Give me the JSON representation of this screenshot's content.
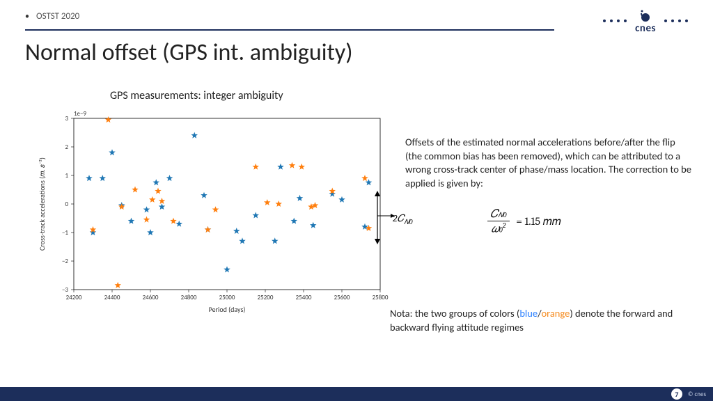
{
  "header": {
    "breadcrumb": "OSTST 2020",
    "logo_text": "cnes"
  },
  "title": "Normal offset (GPS int. ambiguity)",
  "chart": {
    "type": "scatter",
    "title": "GPS measurements: integer ambiguity",
    "xlabel": "Period (days)",
    "ylabel": "Cross-track accelerations  (𝑚. 𝑠⁻²)",
    "y_exponent_label": "1e−9",
    "xlim": [
      24200,
      25800
    ],
    "ylim": [
      -3,
      3
    ],
    "xticks": [
      24200,
      24400,
      24600,
      24800,
      25000,
      25200,
      25400,
      25600,
      25800
    ],
    "yticks": [
      -3,
      -2,
      -1,
      0,
      1,
      2,
      3
    ],
    "tick_fontsize": 9,
    "label_fontsize": 10,
    "background_color": "#ffffff",
    "frame_color": "#000000",
    "marker": "star",
    "marker_size": 5,
    "series": [
      {
        "name": "forward",
        "color": "#1f77b4",
        "points": [
          [
            24280,
            0.9
          ],
          [
            24300,
            -1.0
          ],
          [
            24350,
            0.9
          ],
          [
            24400,
            1.8
          ],
          [
            24450,
            -0.05
          ],
          [
            24500,
            -0.6
          ],
          [
            24580,
            -0.2
          ],
          [
            24600,
            -1.0
          ],
          [
            24630,
            0.75
          ],
          [
            24660,
            -0.1
          ],
          [
            24700,
            0.9
          ],
          [
            24750,
            -0.7
          ],
          [
            24830,
            2.4
          ],
          [
            24880,
            0.3
          ],
          [
            24900,
            -0.9
          ],
          [
            25000,
            -2.3
          ],
          [
            25050,
            -0.95
          ],
          [
            25080,
            -1.3
          ],
          [
            25150,
            -0.4
          ],
          [
            25250,
            -1.3
          ],
          [
            25280,
            1.3
          ],
          [
            25350,
            -0.6
          ],
          [
            25380,
            0.2
          ],
          [
            25450,
            -0.75
          ],
          [
            25550,
            0.35
          ],
          [
            25600,
            0.15
          ],
          [
            25720,
            -0.8
          ],
          [
            25740,
            0.75
          ]
        ]
      },
      {
        "name": "backward",
        "color": "#ff7f0e",
        "points": [
          [
            24300,
            -0.9
          ],
          [
            24380,
            2.95
          ],
          [
            24430,
            -2.85
          ],
          [
            24450,
            -0.1
          ],
          [
            24520,
            0.5
          ],
          [
            24580,
            -0.55
          ],
          [
            24610,
            0.15
          ],
          [
            24640,
            0.45
          ],
          [
            24660,
            0.1
          ],
          [
            24720,
            -0.6
          ],
          [
            24900,
            -0.9
          ],
          [
            24940,
            -0.2
          ],
          [
            25150,
            1.3
          ],
          [
            25210,
            0.05
          ],
          [
            25270,
            0.0
          ],
          [
            25340,
            1.35
          ],
          [
            25390,
            1.3
          ],
          [
            25440,
            -0.1
          ],
          [
            25460,
            -0.05
          ],
          [
            25550,
            0.45
          ],
          [
            25720,
            0.9
          ],
          [
            25740,
            -0.85
          ]
        ]
      }
    ]
  },
  "annotation": {
    "arrow_label_html": "2𝐶<sub class=\"sub\">𝑁0</sub>"
  },
  "body_text": "Offsets of the estimated normal accelerations before/after the flip (the common bias has been removed), which can be attributed to a wrong cross-track center of phase/mass location. The correction to be applied is given by:",
  "formula": {
    "numerator": "𝐶",
    "numerator_sub": "𝑁0",
    "denominator": "𝜔",
    "denominator_sub": "0",
    "denominator_sup": "2",
    "rhs": "= 1.15 𝑚𝑚"
  },
  "nota": {
    "prefix": "Nota: the two groups of colors (",
    "blue": "blue",
    "sep": "/",
    "orange": "orange",
    "suffix": ") denote the forward and backward flying attitude regimes"
  },
  "footer": {
    "page": "7",
    "copyright": "© cnes"
  },
  "style": {
    "accent": "#1c2e5b",
    "blue": "#2a7fff",
    "orange": "#f58b1f"
  }
}
